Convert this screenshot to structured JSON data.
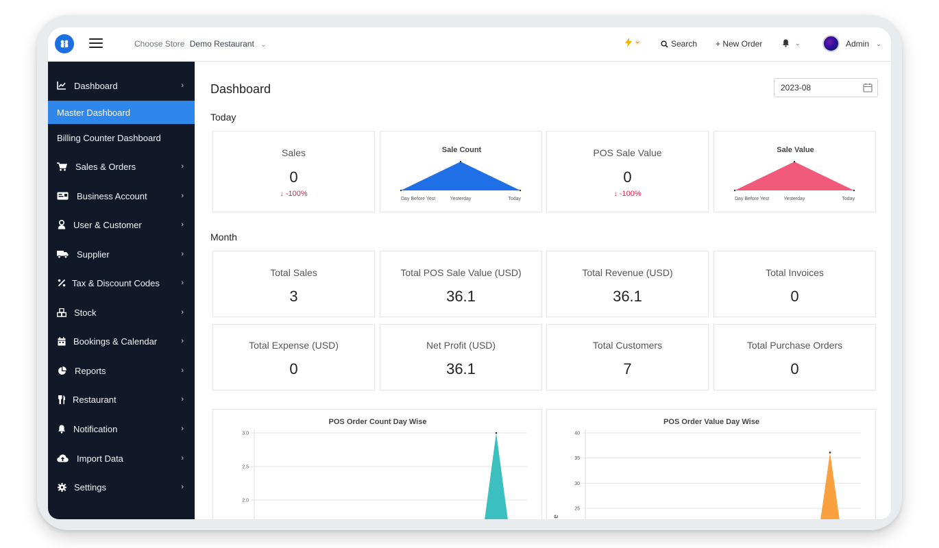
{
  "topbar": {
    "choose_store_label": "Choose Store",
    "store_name": "Demo Restaurant",
    "search_label": "Search",
    "new_order_label": "+ New Order",
    "user_name": "Admin"
  },
  "sidebar": {
    "dashboard_label": "Dashboard",
    "submenu": [
      "Master Dashboard",
      "Billing Counter Dashboard"
    ],
    "active_submenu": "Master Dashboard",
    "items": [
      {
        "label": "Sales & Orders",
        "icon": "cart-icon"
      },
      {
        "label": "Business Account",
        "icon": "card-icon"
      },
      {
        "label": "User & Customer",
        "icon": "user-icon"
      },
      {
        "label": "Supplier",
        "icon": "truck-icon"
      },
      {
        "label": "Tax & Discount Codes",
        "icon": "percent-icon"
      },
      {
        "label": "Stock",
        "icon": "cubes-icon"
      },
      {
        "label": "Bookings & Calendar",
        "icon": "calendar-icon"
      },
      {
        "label": "Reports",
        "icon": "pie-chart-icon"
      },
      {
        "label": "Restaurant",
        "icon": "utensils-icon"
      },
      {
        "label": "Notification",
        "icon": "bell-icon"
      },
      {
        "label": "Import Data",
        "icon": "cloud-upload-icon"
      },
      {
        "label": "Settings",
        "icon": "gear-icon"
      }
    ]
  },
  "main": {
    "title": "Dashboard",
    "date_value": "2023-08",
    "today_label": "Today",
    "month_label": "Month",
    "today_cards": {
      "sales": {
        "title": "Sales",
        "value": "0",
        "change": "-100%"
      },
      "pos_sale_value": {
        "title": "POS Sale Value",
        "value": "0",
        "change": "-100%"
      }
    },
    "month_cards": [
      {
        "title": "Total Sales",
        "value": "3"
      },
      {
        "title": "Total POS Sale Value (USD)",
        "value": "36.1"
      },
      {
        "title": "Total Revenue (USD)",
        "value": "36.1"
      },
      {
        "title": "Total Invoices",
        "value": "0"
      },
      {
        "title": "Total Expense (USD)",
        "value": "0"
      },
      {
        "title": "Net Profit (USD)",
        "value": "36.1"
      },
      {
        "title": "Total Customers",
        "value": "7"
      },
      {
        "title": "Total Purchase Orders",
        "value": "0"
      }
    ]
  },
  "colors": {
    "accent": "#2f86eb",
    "sidebar_bg": "#111827",
    "negative": "#e11d48",
    "sale_count": "#1f6fe6",
    "sale_value": "#f25a7c",
    "order_count": "#3bbfbf",
    "order_value": "#f9a03f"
  },
  "chart_data": [
    {
      "type": "area",
      "title": "Sale Count",
      "categories": [
        "Day Before Yest",
        "Yesterday",
        "Today"
      ],
      "values": [
        0,
        1,
        0
      ]
    },
    {
      "type": "area",
      "title": "Sale Value",
      "categories": [
        "Day Before Yest",
        "Yesterday",
        "Today"
      ],
      "values": [
        0,
        1,
        0
      ]
    },
    {
      "type": "area",
      "title": "POS Order Count Day Wise",
      "y_ticks": [
        "3.0",
        "2.5",
        "2.0"
      ],
      "ylim": [
        2.0,
        3.0
      ],
      "peak_value": 3
    },
    {
      "type": "area",
      "title": "POS Order Value Day Wise",
      "y_ticks": [
        "40",
        "35",
        "30",
        "25"
      ],
      "ylim": [
        25,
        40
      ],
      "peak_value": 36.1,
      "ylabel_partial": "e"
    }
  ]
}
